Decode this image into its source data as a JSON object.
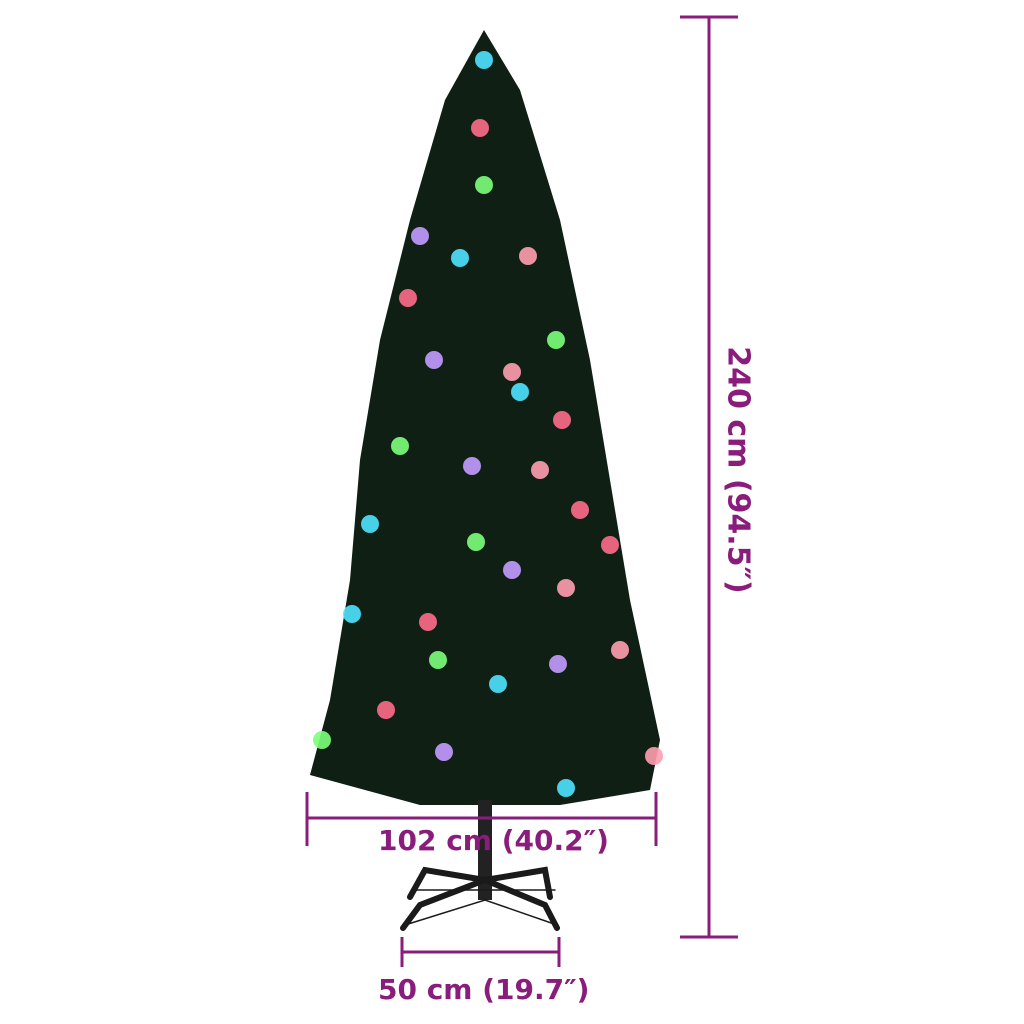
{
  "product": "artificial christmas tree with led lights and stand",
  "dimensions": {
    "height": "240 cm (94.5″)",
    "width": "102 cm (40.2″)",
    "base": "50 cm (19.7″)"
  },
  "colors": {
    "dimension_line": "#8a1c7c",
    "tree": "#0f1f14",
    "stand": "#1a1a1a",
    "lights": [
      "#4fe3ff",
      "#ff6b8a",
      "#7dff7a",
      "#c49bff",
      "#ff9db0"
    ]
  }
}
